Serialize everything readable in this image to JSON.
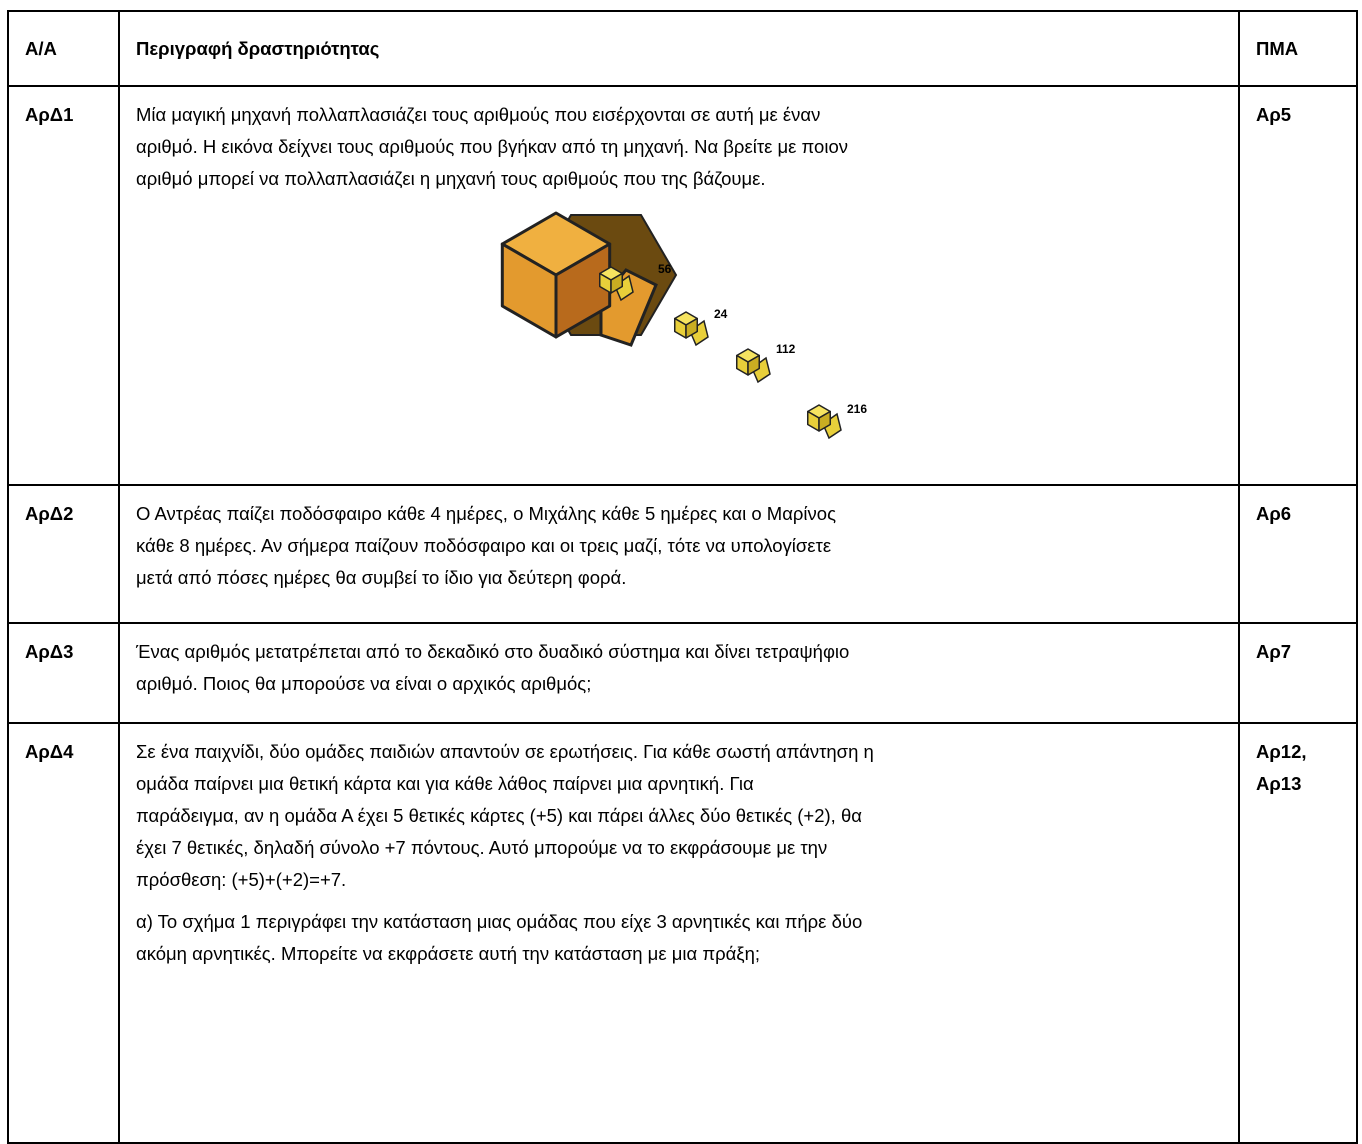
{
  "table": {
    "header": [
      "Α/Α",
      "Περιγραφή δραστηριότητας",
      "ΠΜΑ"
    ],
    "rows": [
      {
        "id": "ΑρΔ1",
        "description": [
          [
            "Μία μαγική μηχανή πολλαπλασιάζει τους αριθμούς που εισέρχονται σε αυτή με έναν",
            "αριθμό. Η εικόνα δείχνει τους αριθμούς που βγήκαν από τη μηχανή. Να βρείτε με ποιον",
            "αριθμό μπορεί να πολλαπλασιάζει η μηχανή τους αριθμούς που της βάζουμε."
          ]
        ],
        "figure_labels": [
          "56",
          "24",
          "112",
          "216"
        ],
        "pma": [
          "Αρ5"
        ]
      },
      {
        "id": "ΑρΔ2",
        "description": [
          [
            "Ο Αντρέας παίζει ποδόσφαιρο κάθε 4 ημέρες, ο Μιχάλης κάθε 5 ημέρες και ο Μαρίνος",
            "κάθε 8 ημέρες. Αν σήμερα παίζουν ποδόσφαιρο και οι τρεις μαζί, τότε να υπολογίσετε",
            "μετά από πόσες ημέρες θα συμβεί το ίδιο για δεύτερη φορά."
          ]
        ],
        "pma": [
          "Αρ6"
        ]
      },
      {
        "id": "ΑρΔ3",
        "description": [
          [
            "Ένας αριθμός μετατρέπεται από το δεκαδικό στο δυαδικό σύστημα και δίνει τετραψήφιο",
            "αριθμό. Ποιος θα μπορούσε να είναι ο αρχικός αριθμός;"
          ]
        ],
        "pma": [
          "Αρ7"
        ]
      },
      {
        "id": "ΑρΔ4",
        "description": [
          [
            "Σε ένα παιχνίδι, δύο ομάδες παιδιών απαντούν σε ερωτήσεις. Για κάθε σωστή απάντηση η",
            "ομάδα παίρνει μια θετική κάρτα και για κάθε λάθος παίρνει μια αρνητική. Για",
            "παράδειγμα, αν η ομάδα Α έχει 5 θετικές κάρτες (+5) και πάρει άλλες δύο θετικές (+2), θα",
            "έχει 7 θετικές, δηλαδή σύνολο +7 πόντους. Αυτό μπορούμε να το εκφράσουμε με την",
            "πρόσθεση: (+5)+(+2)=+7."
          ],
          [
            "α) Το σχήμα 1 περιγράφει την κατάσταση μιας ομάδας που είχε 3 αρνητικές και πήρε δύο",
            "ακόμη αρνητικές. Μπορείτε να εκφράσετε αυτή την κατάσταση με μια πράξη;"
          ]
        ],
        "pma": [
          "Αρ12,",
          "Αρ13"
        ]
      }
    ]
  }
}
